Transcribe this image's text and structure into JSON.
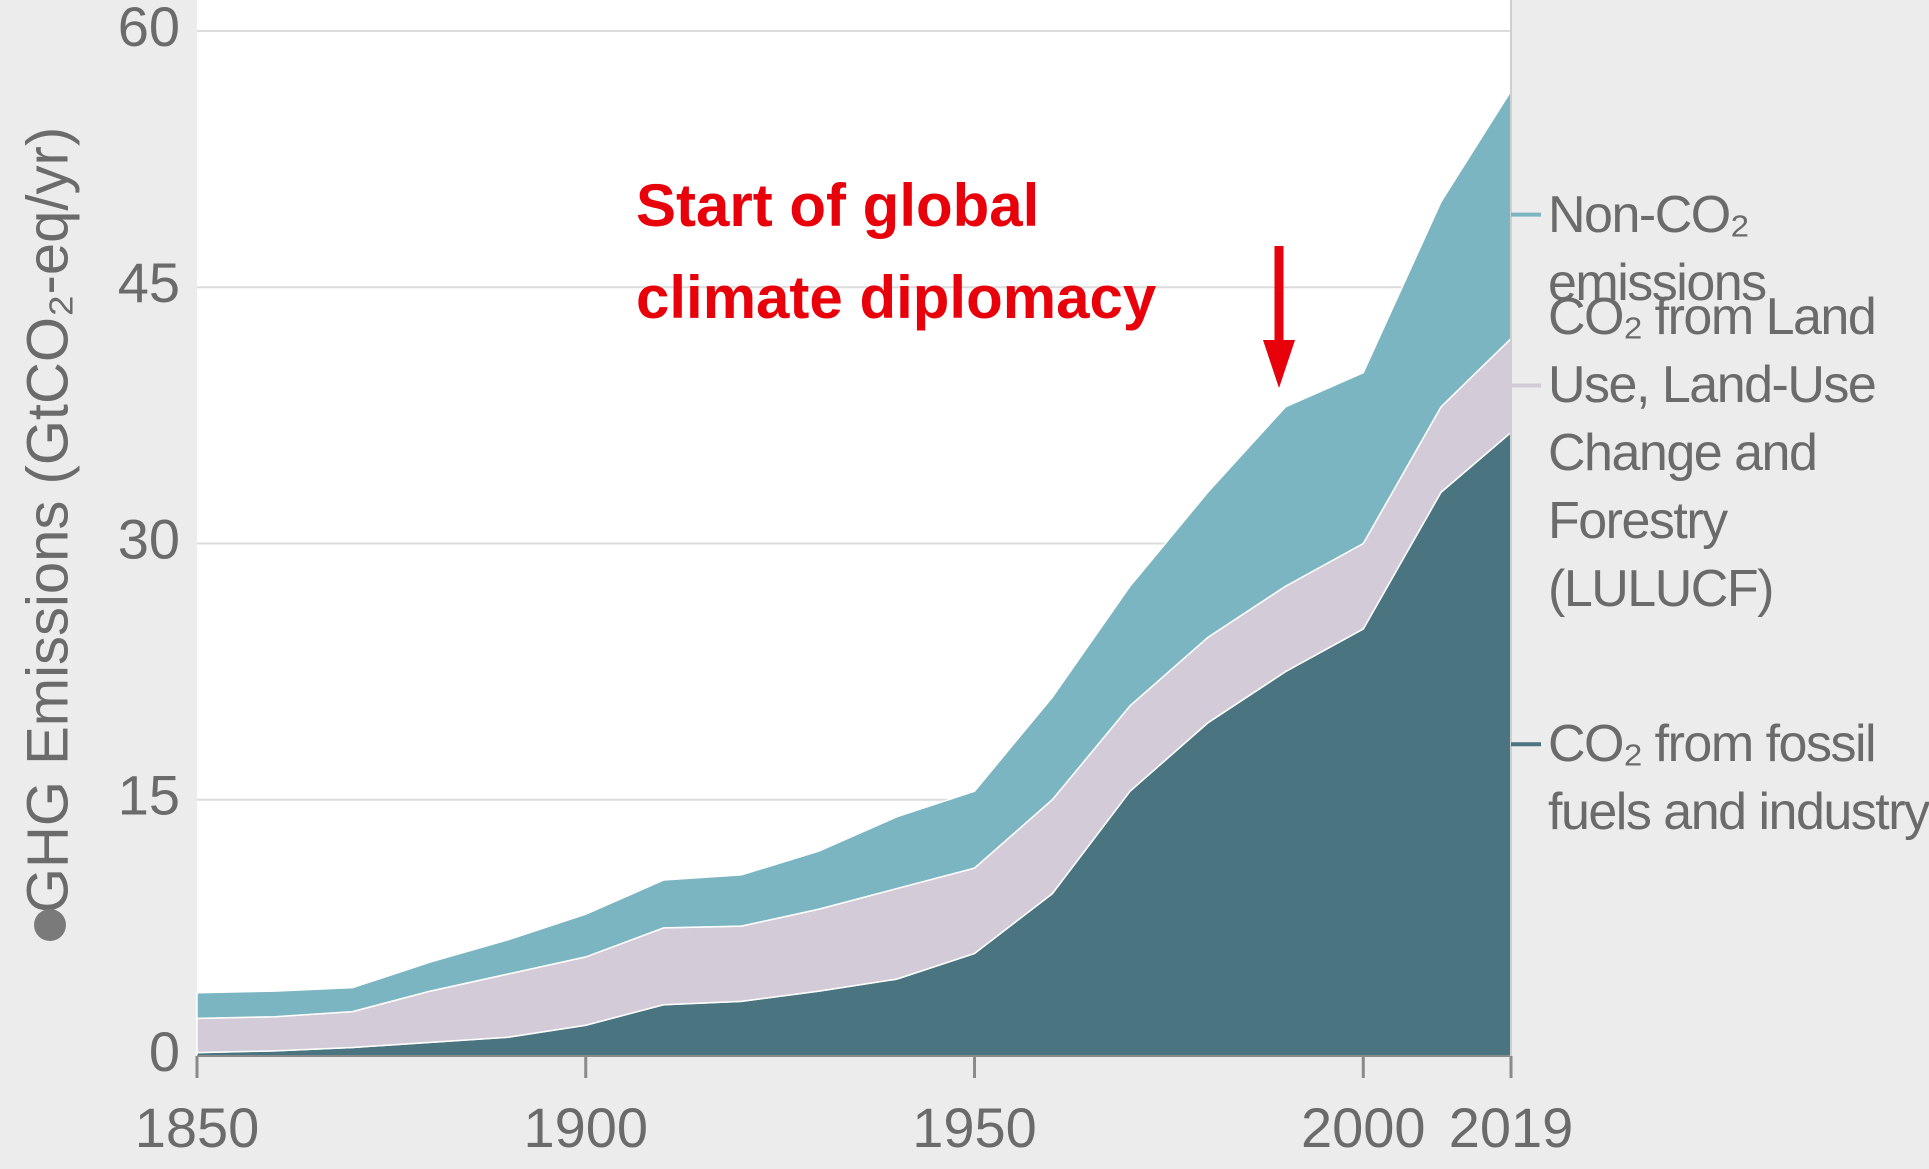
{
  "chart_data": {
    "type": "stacked_area",
    "y_label": "GHG Emissions (GtCO₂-eq/yr)",
    "annotation": "Start of global climate diplomacy",
    "x": [
      1850,
      1860,
      1870,
      1880,
      1890,
      1900,
      1910,
      1920,
      1930,
      1940,
      1950,
      1960,
      1970,
      1980,
      1990,
      2000,
      2010,
      2019
    ],
    "series": [
      {
        "name": "CO₂ from fossil fuels and industry",
        "color": "#4a7480",
        "values": [
          0.2,
          0.3,
          0.5,
          0.8,
          1.1,
          1.8,
          3.0,
          3.2,
          3.8,
          4.5,
          6.0,
          9.5,
          15.5,
          19.5,
          22.5,
          25,
          33,
          36.5
        ]
      },
      {
        "name": "CO₂ from Land Use, Land-Use Change and Forestry (LULUCF)",
        "color": "#d4cbd9",
        "values": [
          2.0,
          2.0,
          2.1,
          3.0,
          3.7,
          4.0,
          4.5,
          4.4,
          4.8,
          5.3,
          5.0,
          5.5,
          5.0,
          5.0,
          5.0,
          5.0,
          5.0,
          5.5
        ]
      },
      {
        "name": "Non-CO₂ emissions",
        "color": "#7ab5c1",
        "values": [
          1.5,
          1.5,
          1.4,
          1.7,
          2.0,
          2.5,
          2.8,
          3.0,
          3.4,
          4.2,
          4.5,
          6.0,
          7.0,
          8.5,
          10.5,
          10.0,
          12.0,
          14.5
        ]
      }
    ],
    "xlim": [
      1850,
      2019
    ],
    "xticks": [
      1850,
      1900,
      1950,
      2000,
      2019
    ],
    "ylim": [
      0,
      60
    ],
    "yticks": [
      0,
      15,
      30,
      45,
      60
    ],
    "grid": true
  }
}
